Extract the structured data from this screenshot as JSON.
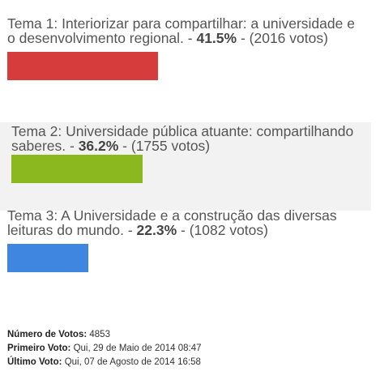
{
  "poll": {
    "options": [
      {
        "text": "Tema 1: Interiorizar para compartilhar: a universidade e o desenvolvimento regional. - ",
        "percent_label": "41.5%",
        "votes_label": " - (2016 votos)",
        "percent": 41.5,
        "color": "#d63c3c"
      },
      {
        "text": "Tema 2: Universidade pública atuante: compartilhando saberes. - ",
        "percent_label": "36.2%",
        "votes_label": " - (1755 votos)",
        "percent": 36.2,
        "color": "#8ab81e"
      },
      {
        "text": "Tema 3: A Universidade e a construção das diversas leituras do mundo. - ",
        "percent_label": "22.3%",
        "votes_label": " - (1082 votos)",
        "percent": 22.3,
        "color": "#3f86e0"
      }
    ],
    "footer": {
      "total_label": "Número de Votos:",
      "total_value": " 4853",
      "first_label": "Primeiro Voto:",
      "first_value": " Qui, 29 de Maio de 2014 08:47",
      "last_label": "Último Voto:",
      "last_value": " Qui, 07 de Agosto de 2014 16:58"
    }
  }
}
